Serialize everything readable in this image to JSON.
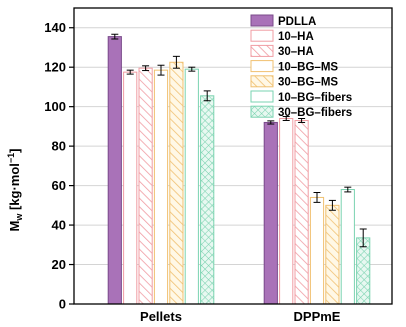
{
  "chart_data": {
    "type": "bar",
    "ylabel_main": "M",
    "ylabel_sub": "w",
    "ylabel_unit_open": " [kg·mol",
    "ylabel_sup": "−1",
    "ylabel_unit_close": "]",
    "ylim": [
      0,
      150
    ],
    "yticks": [
      0,
      20,
      40,
      60,
      80,
      100,
      120,
      140
    ],
    "categories": [
      "Pellets",
      "DPPmE"
    ],
    "legend_position": "top-right",
    "series": [
      {
        "name": "PDLLA",
        "values": [
          135.5,
          92
        ],
        "errors": [
          1.2,
          0.8
        ],
        "color": "#a972b8",
        "pattern": "solid"
      },
      {
        "name": "10–HA",
        "values": [
          117.5,
          94
        ],
        "errors": [
          1.0,
          1.0
        ],
        "color": "#f09ca3",
        "pattern": "open"
      },
      {
        "name": "30–HA",
        "values": [
          119.5,
          93
        ],
        "errors": [
          1.2,
          1.0
        ],
        "color": "#f09ca3",
        "pattern": "hatch"
      },
      {
        "name": "10–BG–MS",
        "values": [
          118.5,
          54
        ],
        "errors": [
          2.5,
          2.5
        ],
        "color": "#f0c070",
        "pattern": "open"
      },
      {
        "name": "30–BG–MS",
        "values": [
          122.5,
          50
        ],
        "errors": [
          3.0,
          2.5
        ],
        "color": "#f0c070",
        "pattern": "hatch"
      },
      {
        "name": "10–BG–fibers",
        "values": [
          119,
          58
        ],
        "errors": [
          1.0,
          1.2
        ],
        "color": "#7ad3b0",
        "pattern": "open"
      },
      {
        "name": "30–BG–fibers",
        "values": [
          105.5,
          33.5
        ],
        "errors": [
          2.5,
          4.5
        ],
        "color": "#7ad3b0",
        "pattern": "cross"
      }
    ]
  }
}
